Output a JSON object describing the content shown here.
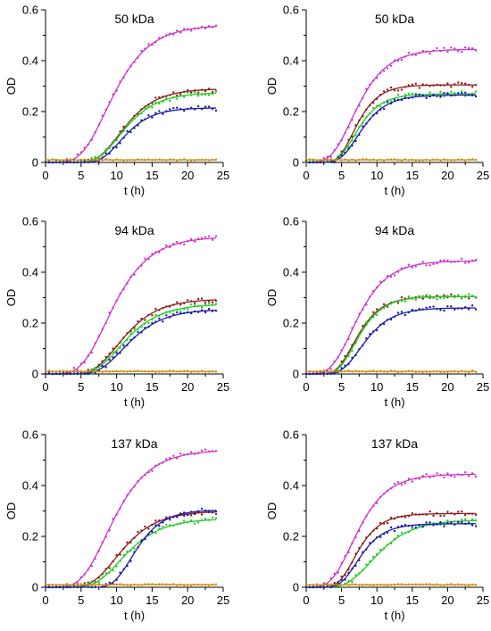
{
  "chart_data": [
    {
      "type": "line",
      "title": "50 kDa",
      "xlabel": "t (h)",
      "ylabel": "OD",
      "xlim": [
        0,
        25
      ],
      "ylim": [
        0,
        0.6
      ],
      "xticks": [
        "0",
        "5",
        "10",
        "15",
        "20",
        "25"
      ],
      "yticks": [
        "0",
        "0.2",
        "0.4",
        "0.6"
      ],
      "grid": false,
      "series": [
        {
          "color": "#cc33cc",
          "A": 0.54,
          "mu": 0.058,
          "lambda": 5.0
        },
        {
          "color": "#8b1a1a",
          "A": 0.29,
          "mu": 0.036,
          "lambda": 7.3
        },
        {
          "color": "#22cc22",
          "A": 0.275,
          "mu": 0.034,
          "lambda": 7.3
        },
        {
          "color": "#1a1aaa",
          "A": 0.215,
          "mu": 0.031,
          "lambda": 7.8
        },
        {
          "color": "#cc8800",
          "A": 0.01,
          "mu": 0.0,
          "lambda": 0.0
        }
      ]
    },
    {
      "type": "line",
      "title": "50 kDa",
      "xlabel": "t (h)",
      "ylabel": "OD",
      "xlim": [
        0,
        25
      ],
      "ylim": [
        0,
        0.6
      ],
      "xticks": [
        "0",
        "5",
        "10",
        "15",
        "20",
        "25"
      ],
      "yticks": [
        "0",
        "0.2",
        "0.4",
        "0.6"
      ],
      "grid": false,
      "series": [
        {
          "color": "#cc33cc",
          "A": 0.445,
          "mu": 0.058,
          "lambda": 3.5
        },
        {
          "color": "#8b1a1a",
          "A": 0.305,
          "mu": 0.055,
          "lambda": 4.5
        },
        {
          "color": "#22cc22",
          "A": 0.27,
          "mu": 0.046,
          "lambda": 4.5
        },
        {
          "color": "#1a1aaa",
          "A": 0.265,
          "mu": 0.042,
          "lambda": 4.8
        },
        {
          "color": "#cc8800",
          "A": 0.01,
          "mu": 0.0,
          "lambda": 0.0
        }
      ]
    },
    {
      "type": "line",
      "title": "94 kDa",
      "xlabel": "t (h)",
      "ylabel": "OD",
      "xlim": [
        0,
        25
      ],
      "ylim": [
        0,
        0.6
      ],
      "xticks": [
        "0",
        "5",
        "10",
        "15",
        "20",
        "25"
      ],
      "yticks": [
        "0",
        "0.2",
        "0.4",
        "0.6"
      ],
      "grid": false,
      "series": [
        {
          "color": "#cc33cc",
          "A": 0.54,
          "mu": 0.058,
          "lambda": 5.0
        },
        {
          "color": "#8b1a1a",
          "A": 0.295,
          "mu": 0.034,
          "lambda": 6.8
        },
        {
          "color": "#22cc22",
          "A": 0.275,
          "mu": 0.031,
          "lambda": 7.0
        },
        {
          "color": "#1a1aaa",
          "A": 0.255,
          "mu": 0.029,
          "lambda": 7.5
        },
        {
          "color": "#cc8800",
          "A": 0.01,
          "mu": 0.0,
          "lambda": 0.0
        }
      ]
    },
    {
      "type": "line",
      "title": "94 kDa",
      "xlabel": "t (h)",
      "ylabel": "OD",
      "xlim": [
        0,
        25
      ],
      "ylim": [
        0,
        0.6
      ],
      "xticks": [
        "0",
        "5",
        "10",
        "15",
        "20",
        "25"
      ],
      "yticks": [
        "0",
        "0.2",
        "0.4",
        "0.6"
      ],
      "grid": false,
      "series": [
        {
          "color": "#cc33cc",
          "A": 0.445,
          "mu": 0.058,
          "lambda": 3.5
        },
        {
          "color": "#8b1a1a",
          "A": 0.305,
          "mu": 0.05,
          "lambda": 4.3
        },
        {
          "color": "#22cc22",
          "A": 0.305,
          "mu": 0.05,
          "lambda": 4.5
        },
        {
          "color": "#1a1aaa",
          "A": 0.26,
          "mu": 0.038,
          "lambda": 5.0
        },
        {
          "color": "#cc8800",
          "A": 0.01,
          "mu": 0.0,
          "lambda": 0.0
        }
      ]
    },
    {
      "type": "line",
      "title": "137 kDa",
      "xlabel": "t (h)",
      "ylabel": "OD",
      "xlim": [
        0,
        25
      ],
      "ylim": [
        0,
        0.6
      ],
      "xticks": [
        "0",
        "5",
        "10",
        "15",
        "20",
        "25"
      ],
      "yticks": [
        "0",
        "0.2",
        "0.4",
        "0.6"
      ],
      "grid": false,
      "series": [
        {
          "color": "#cc33cc",
          "A": 0.54,
          "mu": 0.058,
          "lambda": 5.0
        },
        {
          "color": "#8b1a1a",
          "A": 0.3,
          "mu": 0.034,
          "lambda": 6.5
        },
        {
          "color": "#22cc22",
          "A": 0.27,
          "mu": 0.03,
          "lambda": 7.0
        },
        {
          "color": "#1a1aaa",
          "A": 0.305,
          "mu": 0.045,
          "lambda": 9.5
        },
        {
          "color": "#cc8800",
          "A": 0.01,
          "mu": 0.0,
          "lambda": 0.0
        }
      ]
    },
    {
      "type": "line",
      "title": "137 kDa",
      "xlabel": "t (h)",
      "ylabel": "OD",
      "xlim": [
        0,
        25
      ],
      "ylim": [
        0,
        0.6
      ],
      "xticks": [
        "0",
        "5",
        "10",
        "15",
        "20",
        "25"
      ],
      "yticks": [
        "0",
        "0.2",
        "0.4",
        "0.6"
      ],
      "grid": false,
      "series": [
        {
          "color": "#cc33cc",
          "A": 0.445,
          "mu": 0.058,
          "lambda": 3.5
        },
        {
          "color": "#8b1a1a",
          "A": 0.29,
          "mu": 0.05,
          "lambda": 4.5
        },
        {
          "color": "#22cc22",
          "A": 0.265,
          "mu": 0.03,
          "lambda": 5.8
        },
        {
          "color": "#1a1aaa",
          "A": 0.25,
          "mu": 0.042,
          "lambda": 4.8
        },
        {
          "color": "#cc8800",
          "A": 0.01,
          "mu": 0.0,
          "lambda": 0.0
        }
      ]
    }
  ]
}
